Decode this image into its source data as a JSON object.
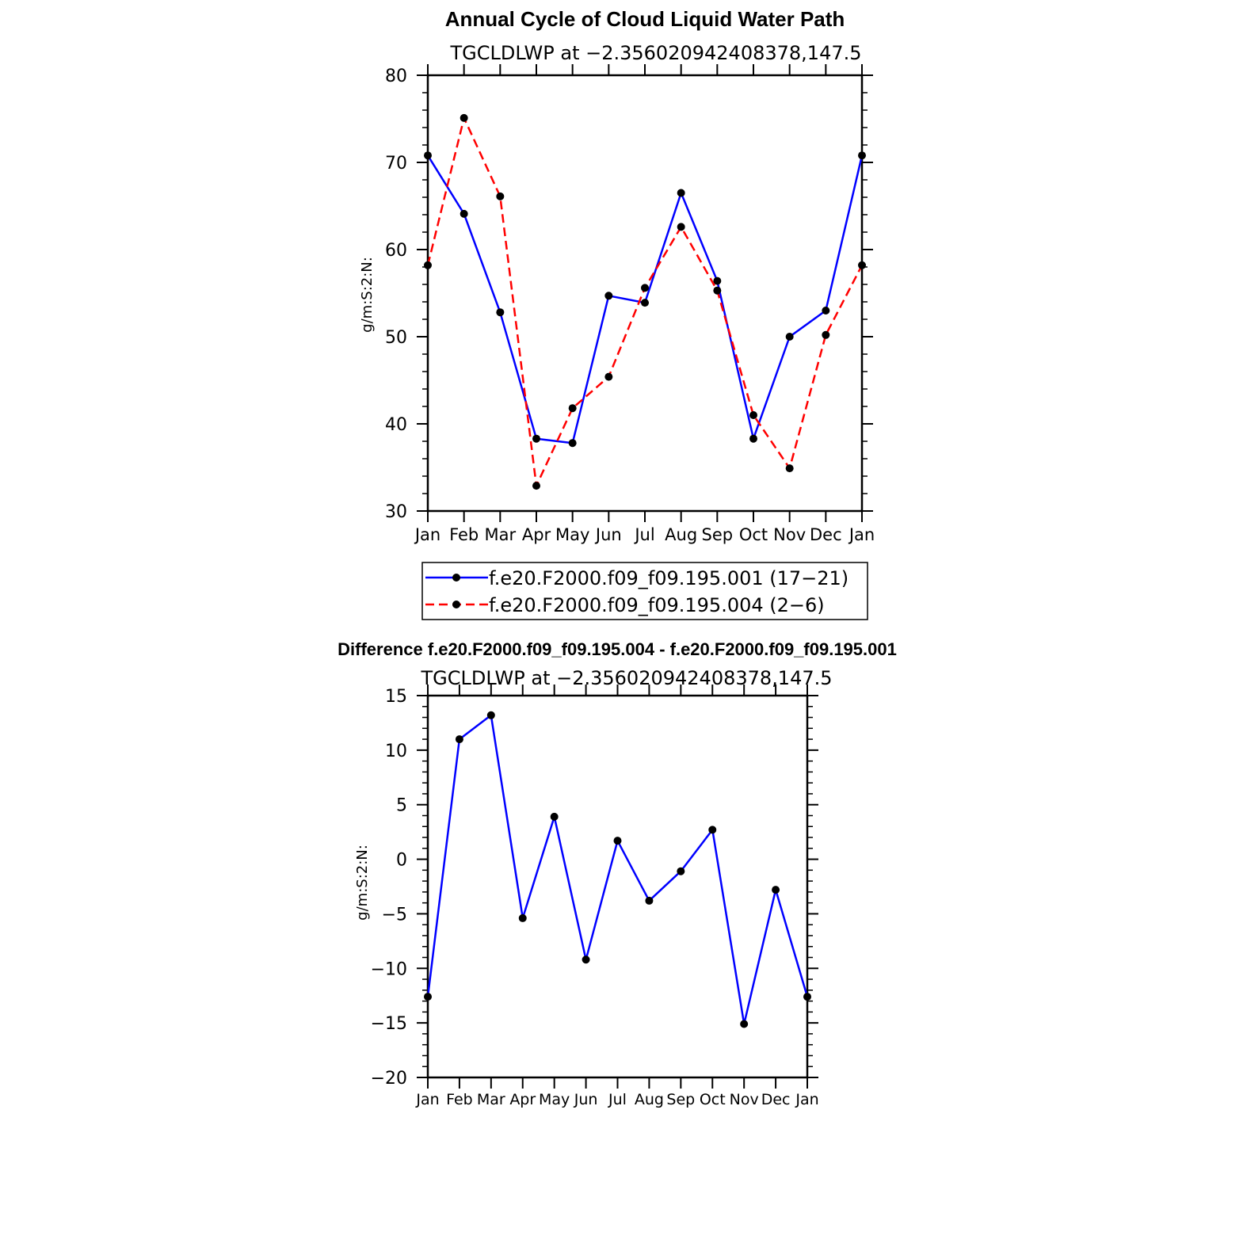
{
  "chart_data": [
    {
      "type": "line",
      "title": "Annual Cycle of Cloud Liquid Water Path",
      "subtitle": "TGCLDLWP at −2.356020942408378,147.5",
      "xlabel": "",
      "ylabel": "g/m:S:2:N:",
      "ylim": [
        30,
        80
      ],
      "yticks": [
        "30",
        "40",
        "50",
        "60",
        "70",
        "80"
      ],
      "ytick_values": [
        30,
        40,
        50,
        60,
        70,
        80
      ],
      "categories": [
        "Jan",
        "Feb",
        "Mar",
        "Apr",
        "May",
        "Jun",
        "Jul",
        "Aug",
        "Sep",
        "Oct",
        "Nov",
        "Dec",
        "Jan"
      ],
      "series": [
        {
          "name": "f.e20.F2000.f09_f09.195.001 (17−21)",
          "color": "#0000ff",
          "dash": "solid",
          "values": [
            70.8,
            64.1,
            52.8,
            38.3,
            37.8,
            54.7,
            53.9,
            66.5,
            56.4,
            38.3,
            50.0,
            53.0,
            70.8
          ]
        },
        {
          "name": "f.e20.F2000.f09_f09.195.004 (2−6)",
          "color": "#ff0000",
          "dash": "dashed",
          "values": [
            58.2,
            75.1,
            66.1,
            32.9,
            41.8,
            45.4,
            55.6,
            62.6,
            55.3,
            41.0,
            34.9,
            50.2,
            58.2
          ]
        }
      ],
      "legend": "below"
    },
    {
      "type": "line",
      "title": "Difference f.e20.F2000.f09_f09.195.004 - f.e20.F2000.f09_f09.195.001",
      "subtitle": "TGCLDLWP at −2.356020942408378,147.5",
      "xlabel": "",
      "ylabel": "g/m:S:2:N:",
      "ylim": [
        -20,
        15
      ],
      "yticks": [
        "−20",
        "−15",
        "−10",
        "−5",
        "0",
        "5",
        "10",
        "15"
      ],
      "ytick_values": [
        -20,
        -15,
        -10,
        -5,
        0,
        5,
        10,
        15
      ],
      "categories": [
        "Jan",
        "Feb",
        "Mar",
        "Apr",
        "May",
        "Jun",
        "Jul",
        "Aug",
        "Sep",
        "Oct",
        "Nov",
        "Dec",
        "Jan"
      ],
      "series": [
        {
          "name": "Difference",
          "color": "#0000ff",
          "dash": "solid",
          "values": [
            -12.6,
            11.0,
            13.2,
            -5.4,
            3.9,
            -9.2,
            1.7,
            -3.8,
            -1.1,
            2.7,
            -15.1,
            -2.8,
            -12.6
          ]
        }
      ]
    }
  ]
}
